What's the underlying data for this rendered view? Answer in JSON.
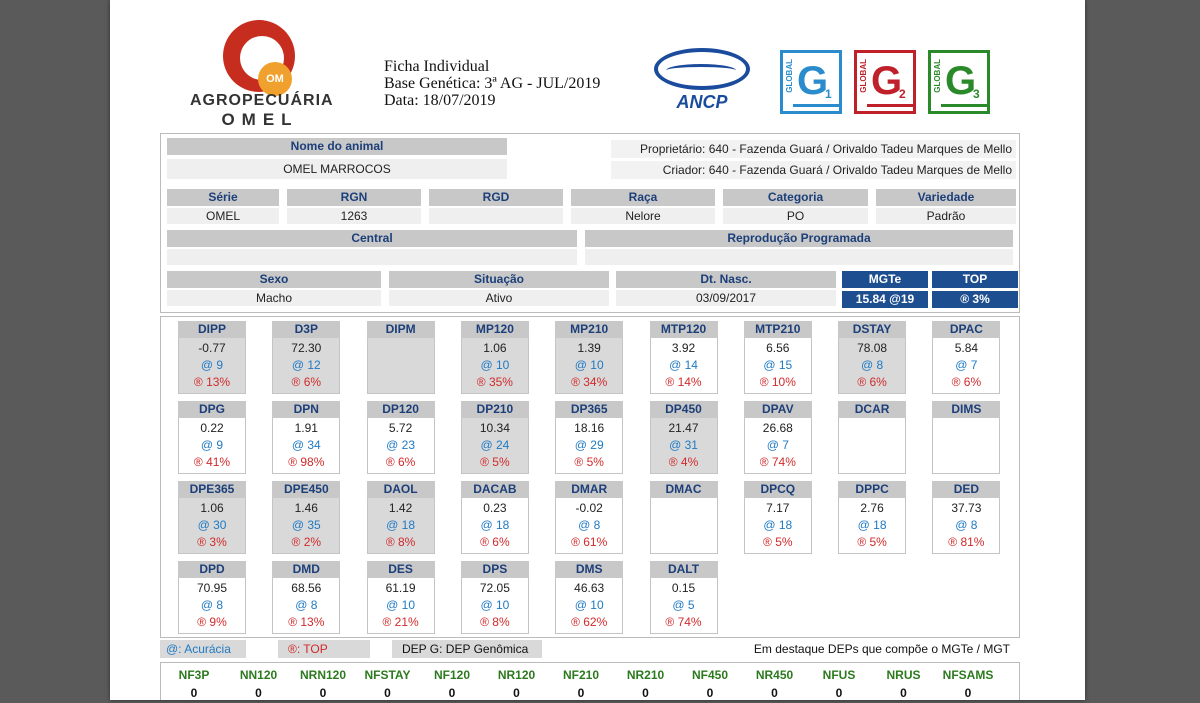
{
  "brand": {
    "logo_mark": "OM",
    "line1": "AGROPECUÁRIA",
    "line2": "OMEL"
  },
  "header": {
    "line1": "Ficha Individual",
    "line2": "Base Genética: 3ª AG - JUL/2019",
    "line3": "Data: 18/07/2019"
  },
  "ancp": "ANCP",
  "badges": [
    {
      "label": "GLOBAL",
      "letter": "G",
      "num": "1",
      "color": "#2a8ccc"
    },
    {
      "label": "GLOBAL",
      "letter": "G",
      "num": "2",
      "color": "#c0202a"
    },
    {
      "label": "GLOBAL",
      "letter": "G",
      "num": "3",
      "color": "#2a8a2a"
    }
  ],
  "animal": {
    "name_label": "Nome do animal",
    "name": "OMEL MARROCOS",
    "owner": "Proprietário: 640 - Fazenda Guará / Orivaldo Tadeu Marques de Mello",
    "breeder": "Criador: 640 - Fazenda Guará / Orivaldo Tadeu Marques de Mello",
    "fields": [
      {
        "label": "Série",
        "value": "OMEL"
      },
      {
        "label": "RGN",
        "value": "1263"
      },
      {
        "label": "RGD",
        "value": ""
      },
      {
        "label": "Raça",
        "value": "Nelore"
      },
      {
        "label": "Categoria",
        "value": "PO"
      },
      {
        "label": "Variedade",
        "value": "Padrão"
      }
    ],
    "central_label": "Central",
    "central_value": "",
    "repro_label": "Reprodução Programada",
    "repro_value": "",
    "sexo_label": "Sexo",
    "sexo": "Macho",
    "situacao_label": "Situação",
    "situacao": "Ativo",
    "nasc_label": "Dt. Nasc.",
    "nasc": "03/09/2017",
    "mgte_label": "MGTe",
    "mgte": "15.84 @19",
    "top_label": "TOP",
    "top": "® 3%"
  },
  "deps": [
    {
      "name": "DIPP",
      "value": "-0.77",
      "acc": "@ 9",
      "top": "® 13%",
      "hl": true
    },
    {
      "name": "D3P",
      "value": "72.30",
      "acc": "@ 12",
      "top": "® 6%",
      "hl": true
    },
    {
      "name": "DIPM",
      "value": "",
      "acc": "",
      "top": "",
      "hl": true
    },
    {
      "name": "MP120",
      "value": "1.06",
      "acc": "@ 10",
      "top": "® 35%",
      "hl": true
    },
    {
      "name": "MP210",
      "value": "1.39",
      "acc": "@ 10",
      "top": "® 34%",
      "hl": true
    },
    {
      "name": "MTP120",
      "value": "3.92",
      "acc": "@ 14",
      "top": "® 14%",
      "hl": false
    },
    {
      "name": "MTP210",
      "value": "6.56",
      "acc": "@ 15",
      "top": "® 10%",
      "hl": false
    },
    {
      "name": "DSTAY",
      "value": "78.08",
      "acc": "@ 8",
      "top": "® 6%",
      "hl": true
    },
    {
      "name": "DPAC",
      "value": "5.84",
      "acc": "@ 7",
      "top": "® 6%",
      "hl": false
    },
    {
      "name": "DPG",
      "value": "0.22",
      "acc": "@ 9",
      "top": "® 41%",
      "hl": false
    },
    {
      "name": "DPN",
      "value": "1.91",
      "acc": "@ 34",
      "top": "® 98%",
      "hl": false
    },
    {
      "name": "DP120",
      "value": "5.72",
      "acc": "@ 23",
      "top": "® 6%",
      "hl": false
    },
    {
      "name": "DP210",
      "value": "10.34",
      "acc": "@ 24",
      "top": "® 5%",
      "hl": true
    },
    {
      "name": "DP365",
      "value": "18.16",
      "acc": "@ 29",
      "top": "® 5%",
      "hl": false
    },
    {
      "name": "DP450",
      "value": "21.47",
      "acc": "@ 31",
      "top": "® 4%",
      "hl": true
    },
    {
      "name": "DPAV",
      "value": "26.68",
      "acc": "@ 7",
      "top": "® 74%",
      "hl": false
    },
    {
      "name": "DCAR",
      "value": "",
      "acc": "",
      "top": "",
      "hl": false
    },
    {
      "name": "DIMS",
      "value": "",
      "acc": "",
      "top": "",
      "hl": false
    },
    {
      "name": "DPE365",
      "value": "1.06",
      "acc": "@ 30",
      "top": "® 3%",
      "hl": true
    },
    {
      "name": "DPE450",
      "value": "1.46",
      "acc": "@ 35",
      "top": "® 2%",
      "hl": true
    },
    {
      "name": "DAOL",
      "value": "1.42",
      "acc": "@ 18",
      "top": "® 8%",
      "hl": true
    },
    {
      "name": "DACAB",
      "value": "0.23",
      "acc": "@ 18",
      "top": "® 6%",
      "hl": false
    },
    {
      "name": "DMAR",
      "value": "-0.02",
      "acc": "@ 8",
      "top": "® 61%",
      "hl": false
    },
    {
      "name": "DMAC",
      "value": "",
      "acc": "",
      "top": "",
      "hl": false
    },
    {
      "name": "DPCQ",
      "value": "7.17",
      "acc": "@ 18",
      "top": "® 5%",
      "hl": false
    },
    {
      "name": "DPPC",
      "value": "2.76",
      "acc": "@ 18",
      "top": "® 5%",
      "hl": false
    },
    {
      "name": "DED",
      "value": "37.73",
      "acc": "@ 8",
      "top": "® 81%",
      "hl": false
    },
    {
      "name": "DPD",
      "value": "70.95",
      "acc": "@ 8",
      "top": "® 9%",
      "hl": false
    },
    {
      "name": "DMD",
      "value": "68.56",
      "acc": "@ 8",
      "top": "® 13%",
      "hl": false
    },
    {
      "name": "DES",
      "value": "61.19",
      "acc": "@ 10",
      "top": "® 21%",
      "hl": false
    },
    {
      "name": "DPS",
      "value": "72.05",
      "acc": "@ 10",
      "top": "® 8%",
      "hl": false
    },
    {
      "name": "DMS",
      "value": "46.63",
      "acc": "@ 10",
      "top": "® 62%",
      "hl": false
    },
    {
      "name": "DALT",
      "value": "0.15",
      "acc": "@ 5",
      "top": "® 74%",
      "hl": false
    }
  ],
  "legend": {
    "acc": "@: Acurácia",
    "top": "®: TOP",
    "genomic": "DEP G: DEP Genômica",
    "note": "Em destaque DEPs que compõe o MGTe / MGT"
  },
  "nf": [
    {
      "label": "NF3P",
      "value": "0"
    },
    {
      "label": "NN120",
      "value": "0"
    },
    {
      "label": "NRN120",
      "value": "0"
    },
    {
      "label": "NFSTAY",
      "value": "0"
    },
    {
      "label": "NF120",
      "value": "0"
    },
    {
      "label": "NR120",
      "value": "0"
    },
    {
      "label": "NF210",
      "value": "0"
    },
    {
      "label": "NR210",
      "value": "0"
    },
    {
      "label": "NF450",
      "value": "0"
    },
    {
      "label": "NR450",
      "value": "0"
    },
    {
      "label": "NFUS",
      "value": "0"
    },
    {
      "label": "NRUS",
      "value": "0"
    },
    {
      "label": "NFSAMS",
      "value": "0"
    }
  ]
}
